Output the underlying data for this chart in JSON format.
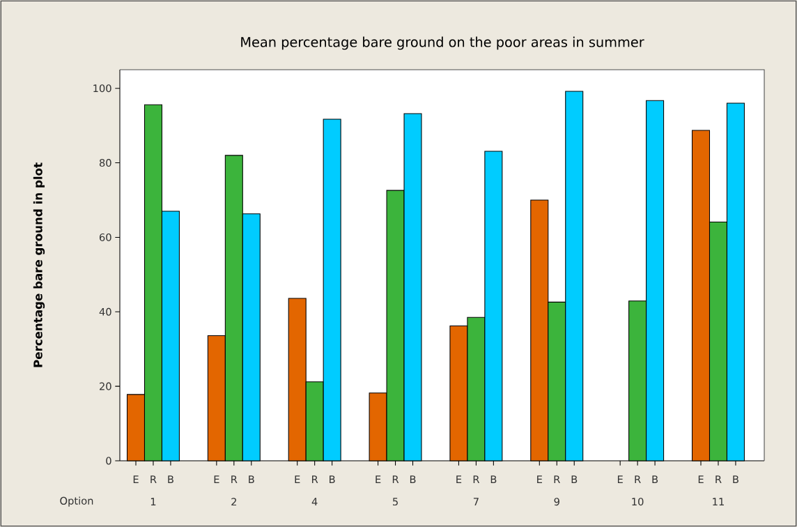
{
  "chart_data": {
    "type": "bar",
    "title": "Mean percentage bare ground on the poor areas in summer",
    "xlabel": "Option",
    "ylabel": "Percentage bare ground in plot",
    "categories": [
      "1",
      "2",
      "4",
      "5",
      "7",
      "9",
      "10",
      "11"
    ],
    "series": [
      {
        "name": "E",
        "color": "#e36600",
        "values": [
          17.8,
          33.6,
          43.6,
          18.2,
          36.2,
          70,
          null,
          88.7
        ]
      },
      {
        "name": "R",
        "color": "#3cb43c",
        "values": [
          95.6,
          82,
          21.2,
          72.6,
          38.5,
          42.6,
          42.9,
          64.1
        ]
      },
      {
        "name": "B",
        "color": "#00ccff",
        "values": [
          67,
          66.3,
          91.7,
          93.2,
          83.1,
          99.2,
          96.7,
          96
        ]
      }
    ],
    "legend": "bottom",
    "ylim": [
      0,
      105
    ],
    "yticks": [
      0,
      20,
      40,
      60,
      80,
      100
    ]
  }
}
